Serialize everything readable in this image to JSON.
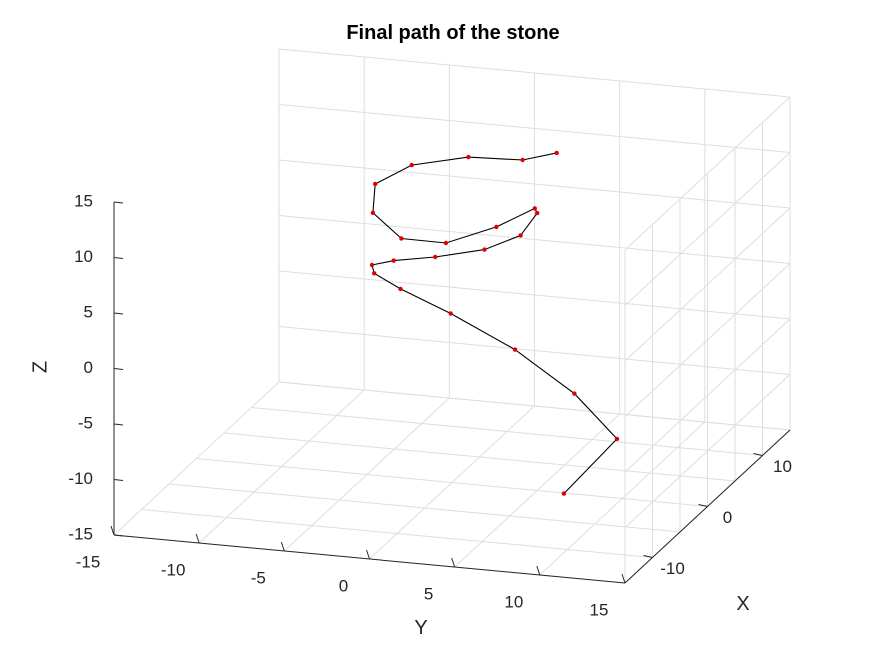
{
  "chart_data": {
    "type": "line3d",
    "title": "Final path of the stone",
    "xlabel": "X",
    "ylabel": "Y",
    "zlabel": "Z",
    "xlim": [
      -15,
      15
    ],
    "ylim": [
      -15,
      15
    ],
    "zlim": [
      -15,
      15
    ],
    "x_ticks": [
      "-10",
      "0",
      "10"
    ],
    "y_ticks": [
      "-15",
      "-10",
      "-5",
      "0",
      "5",
      "10",
      "15"
    ],
    "z_ticks": [
      "15",
      "10",
      "5",
      "0",
      "-5",
      "-10",
      "-15"
    ],
    "grid": true,
    "line_color": "#000000",
    "marker_color": "#e00000",
    "view": {
      "azimuth": 70,
      "elevation": 13
    },
    "x": [
      -0.1,
      4.6,
      8.0,
      9.9,
      10.3,
      8.9,
      6.3,
      2.8,
      -1.0,
      -4.6,
      -7.4,
      -9.2,
      -9.9,
      -9.1,
      -7.1,
      -3.9,
      0.1,
      4.2,
      7.4,
      9.4,
      9.8,
      8.2,
      5.1
    ],
    "y": [
      6.6,
      8.2,
      4.6,
      0.5,
      -3.4,
      -5.9,
      -6.6,
      -5.6,
      -3.1,
      0.5,
      4.3,
      7.0,
      8.2,
      7.8,
      4.9,
      0.9,
      -3.0,
      -6.0,
      -6.9,
      -5.4,
      -2.2,
      1.5,
      4.5
    ],
    "z": [
      -15,
      -12,
      -10,
      -7.5,
      -5,
      -2.5,
      0,
      2.5,
      5,
      7.5,
      10,
      12.5,
      15,
      15,
      12,
      8.5,
      6.5,
      6.5,
      7.5,
      8.5,
      9.5,
      10.5,
      13
    ]
  }
}
